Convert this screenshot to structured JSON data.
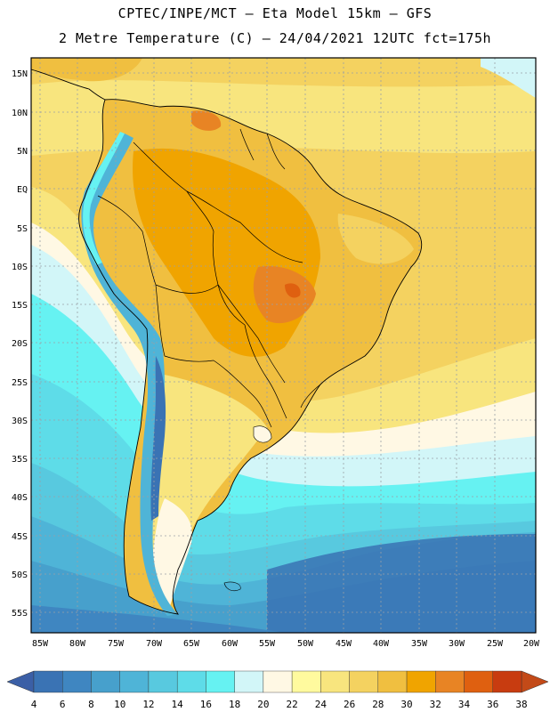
{
  "header": {
    "line1": "CPTEC/INPE/MCT –  Eta Model 15km – GFS",
    "line2": "2 Metre Temperature (C) – 24/04/2021 12UTC fct=175h"
  },
  "axes": {
    "lat_labels": [
      "15N",
      "10N",
      "5N",
      "EQ",
      "5S",
      "10S",
      "15S",
      "20S",
      "25S",
      "30S",
      "35S",
      "40S",
      "45S",
      "50S",
      "55S"
    ],
    "lon_labels": [
      "85W",
      "80W",
      "75W",
      "70W",
      "65W",
      "60W",
      "55W",
      "50W",
      "45W",
      "40W",
      "35W",
      "30W",
      "25W",
      "20W"
    ]
  },
  "colorbar": {
    "labels": [
      "4",
      "6",
      "8",
      "10",
      "12",
      "14",
      "16",
      "18",
      "20",
      "22",
      "24",
      "26",
      "28",
      "30",
      "32",
      "34",
      "36",
      "38"
    ],
    "colors": [
      "#3a73b4",
      "#3f86c1",
      "#47a0cc",
      "#4fb4d7",
      "#58c9df",
      "#5edce8",
      "#66f2f2",
      "#d2f6f8",
      "#fff8e4",
      "#fffa9e",
      "#f8e57e",
      "#f4d260",
      "#f0bf40",
      "#f0a400",
      "#e88424",
      "#df6010",
      "#c83c10"
    ],
    "left_arrow_color": "#3b5fa6",
    "right_arrow_color": "#c34a18"
  }
}
